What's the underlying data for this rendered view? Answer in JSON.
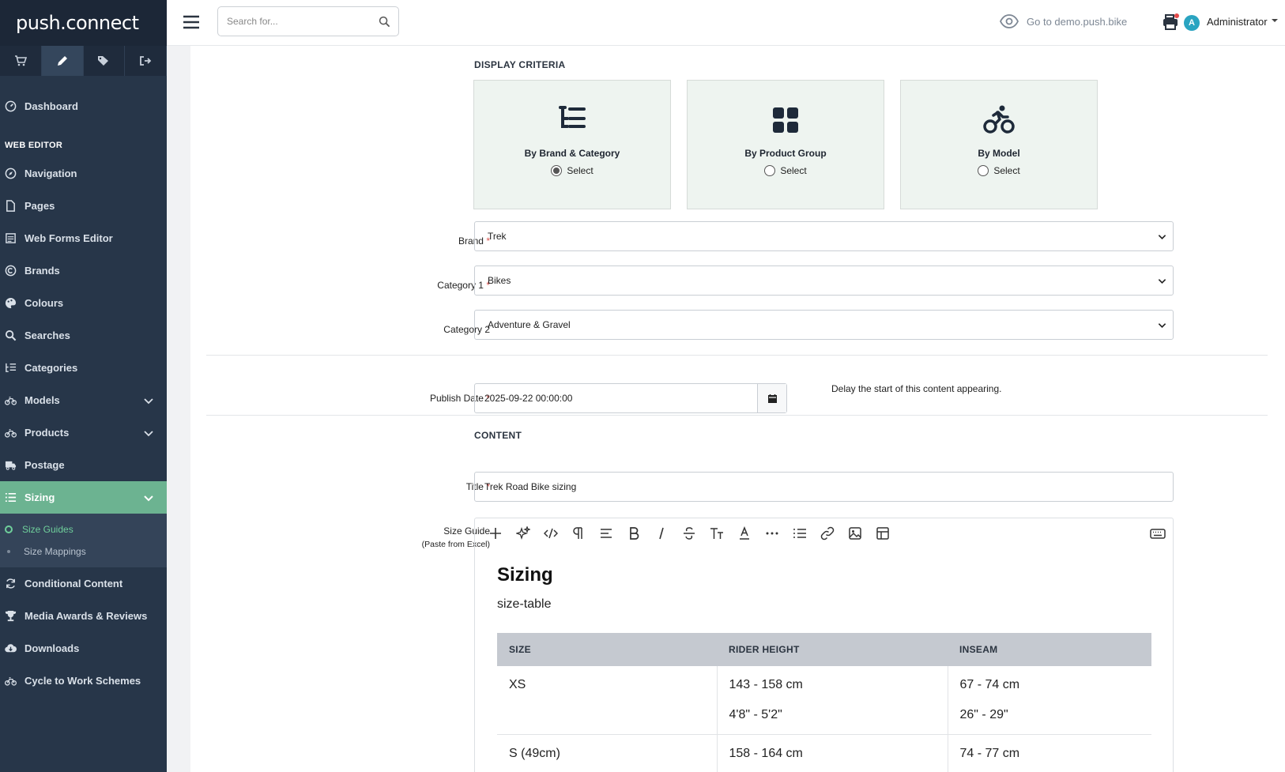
{
  "app": {
    "logo": "push.connect",
    "logo_a": "push",
    "logo_b": "connect"
  },
  "topbar": {
    "search_placeholder": "Search for...",
    "goto": "Go to demo.push.bike",
    "avatar_letter": "A",
    "user": "Administrator"
  },
  "sidebar": {
    "dashboard": "Dashboard",
    "section": "WEB EDITOR",
    "items": [
      "Navigation",
      "Pages",
      "Web Forms Editor",
      "Brands",
      "Colours",
      "Searches",
      "Categories",
      "Models",
      "Products",
      "Postage",
      "Sizing"
    ],
    "sizing_sub": [
      "Size Guides",
      "Size Mappings"
    ],
    "items_after": [
      "Conditional Content",
      "Media Awards & Reviews",
      "Downloads",
      "Cycle to Work Schemes"
    ]
  },
  "form": {
    "display_criteria": "DISPLAY CRITERIA",
    "cards": [
      {
        "title": "By Brand & Category",
        "select": "Select",
        "selected": true
      },
      {
        "title": "By Product Group",
        "select": "Select",
        "selected": false
      },
      {
        "title": "By Model",
        "select": "Select",
        "selected": false
      }
    ],
    "brand_label": "Brand",
    "brand_value": "Trek",
    "cat1_label": "Category 1",
    "cat1_value": "Bikes",
    "cat2_label": "Category 2",
    "cat2_value": "Adventure & Gravel",
    "publish_label": "Publish Date",
    "publish_value": "2025-09-22 00:00:00",
    "publish_hint": "Delay the start of this content appearing.",
    "content_heading": "CONTENT",
    "title_label": "Title",
    "title_value": "Trek Road Bike sizing",
    "sizeguide_label": "Size Guide",
    "sizeguide_note": "(Paste from Excel)",
    "required": "*"
  },
  "editor": {
    "heading": "Sizing",
    "subtitle": "size-table",
    "table": {
      "headers": [
        "SIZE",
        "RIDER HEIGHT",
        "INSEAM"
      ],
      "rows": [
        [
          "XS",
          "143 - 158 cm",
          "4'8\" - 5'2\"",
          "67 - 74 cm",
          "26\" - 29\""
        ],
        [
          "S (49cm)",
          "158 - 164 cm",
          "",
          "74 - 77 cm",
          ""
        ]
      ]
    }
  }
}
